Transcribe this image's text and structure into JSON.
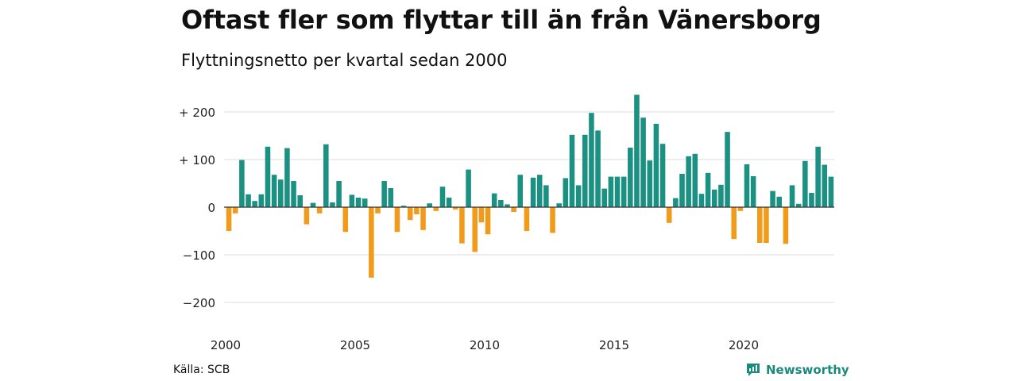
{
  "header": {
    "title": "Oftast fler som flyttar till än från Vänersborg",
    "subtitle": "Flyttningsnetto per kvartal sedan 2000"
  },
  "footer": {
    "source": "Källa: SCB",
    "brand": "Newsworthy"
  },
  "colors": {
    "positive": "#1a9182",
    "negative": "#f29b1a",
    "grid": "#dddddd",
    "brand": "#1a8a7c"
  },
  "icons": {
    "brand_logo": "newsworthy-logo-icon"
  },
  "chart_data": {
    "type": "bar",
    "title": "Oftast fler som flyttar till än från Vänersborg",
    "subtitle": "Flyttningsnetto per kvartal sedan 2000",
    "xlabel": "",
    "ylabel": "",
    "ylim": [
      -240,
      240
    ],
    "y_ticks": [
      {
        "value": 200,
        "label": "+ 200"
      },
      {
        "value": 100,
        "label": "+ 100"
      },
      {
        "value": 0,
        "label": "0"
      },
      {
        "value": -100,
        "label": "−100"
      },
      {
        "value": -200,
        "label": "−200"
      }
    ],
    "x_ticks": [
      {
        "year": 2000,
        "label": "2000"
      },
      {
        "year": 2005,
        "label": "2005"
      },
      {
        "year": 2010,
        "label": "2010"
      },
      {
        "year": 2015,
        "label": "2015"
      },
      {
        "year": 2020,
        "label": "2020"
      }
    ],
    "start": {
      "year": 2000,
      "quarter": 1
    },
    "grid": true,
    "legend": "none",
    "values": [
      -50,
      -13,
      99,
      27,
      13,
      27,
      127,
      68,
      58,
      124,
      55,
      25,
      -36,
      9,
      -13,
      132,
      10,
      55,
      -52,
      26,
      20,
      18,
      -148,
      -13,
      55,
      40,
      -52,
      3,
      -27,
      -15,
      -48,
      8,
      -8,
      43,
      20,
      -5,
      -76,
      79,
      -94,
      -32,
      -57,
      29,
      15,
      6,
      -10,
      68,
      -50,
      62,
      68,
      46,
      -54,
      8,
      61,
      152,
      46,
      152,
      198,
      161,
      39,
      64,
      64,
      64,
      125,
      236,
      188,
      98,
      175,
      133,
      -33,
      19,
      70,
      107,
      112,
      28,
      72,
      37,
      47,
      158,
      -67,
      -8,
      90,
      65,
      -75,
      -75,
      34,
      22,
      -77,
      46,
      7,
      97,
      30,
      127,
      89,
      64
    ]
  }
}
